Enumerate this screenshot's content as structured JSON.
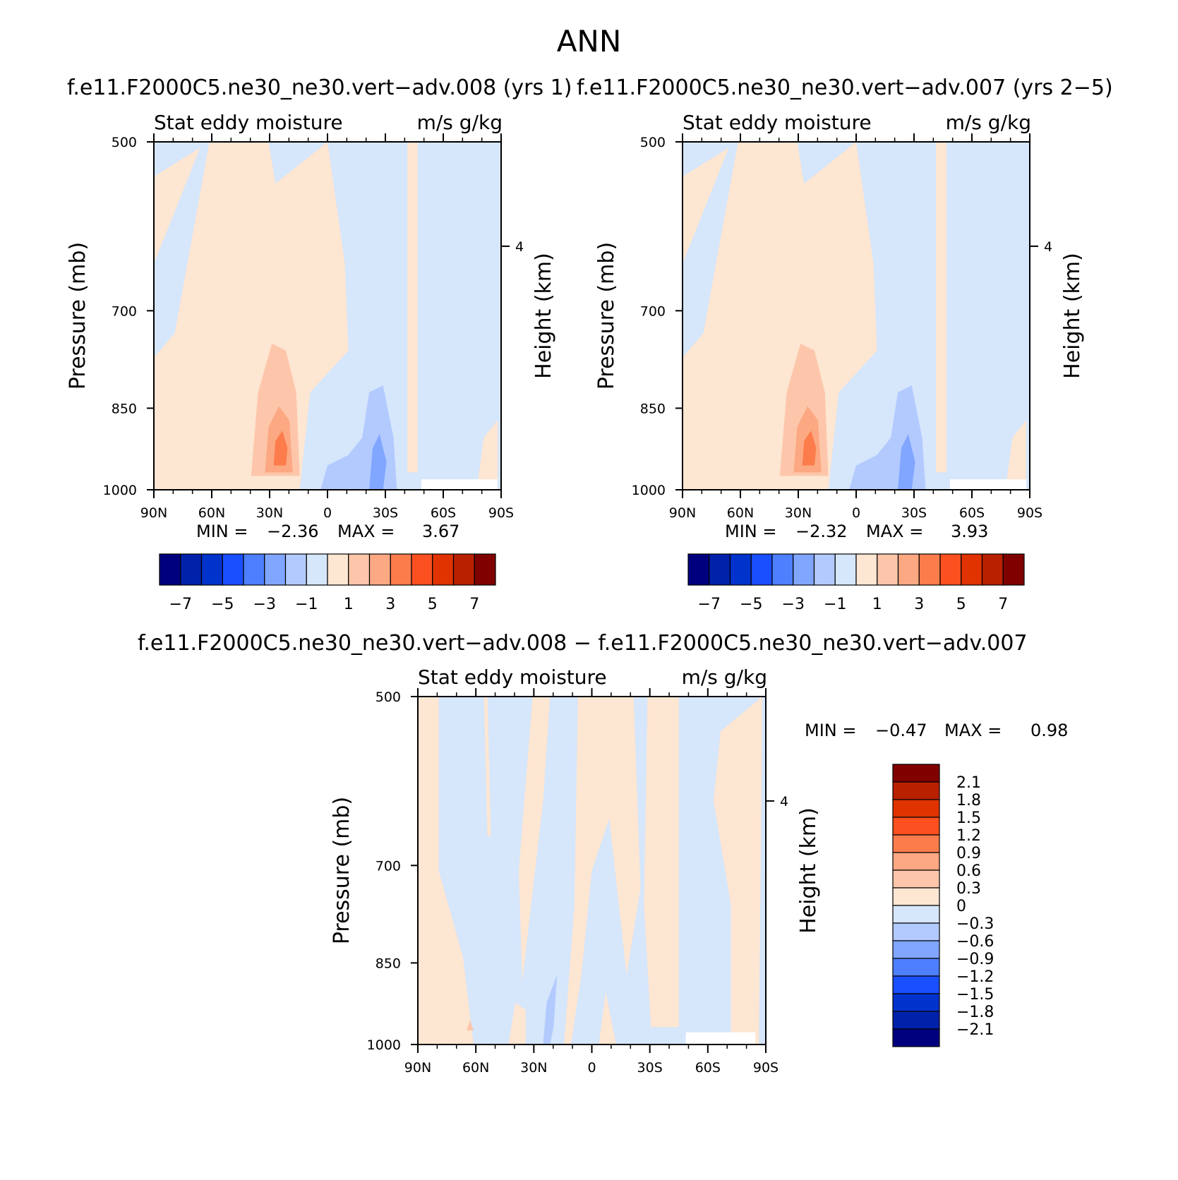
{
  "page": {
    "title": "ANN",
    "palette": [
      "#00007f",
      "#0022aa",
      "#0033cc",
      "#1a4fff",
      "#4d7fff",
      "#80a6ff",
      "#b3caff",
      "#d6e6fb",
      "#fde6d2",
      "#fdc6aa",
      "#fca882",
      "#fc7c4c",
      "#fc5020",
      "#e03300",
      "#b82000",
      "#800000"
    ]
  },
  "chart_data": [
    {
      "type": "heatmap",
      "title": "f.e11.F2000C5.ne30_ne30.vert−adv.008 (yrs 1)",
      "subtitle_left": "Stat eddy moisture",
      "subtitle_right": "m/s g/kg",
      "xlabel": "",
      "ylabel": "Pressure (mb)",
      "y2label": "Height (km)",
      "x_ticks": [
        "90N",
        "60N",
        "30N",
        "0",
        "30S",
        "60S",
        "90S"
      ],
      "y_ticks": [
        "500",
        "700",
        "850",
        "1000"
      ],
      "y2_ticks": [
        "4"
      ],
      "stats": {
        "min_label": "MIN =",
        "min": "−2.36",
        "max_label": "MAX =",
        "max": "3.67"
      },
      "colorbar": {
        "orientation": "horizontal",
        "levels": [
          -7,
          -6,
          -5,
          -4,
          -3,
          -2,
          -1,
          0,
          1,
          2,
          3,
          4,
          5,
          6,
          7
        ],
        "tick_labels": [
          "−7",
          "−5",
          "−3",
          "−1",
          "1",
          "3",
          "5",
          "7"
        ]
      }
    },
    {
      "type": "heatmap",
      "title": "f.e11.F2000C5.ne30_ne30.vert−adv.007 (yrs 2−5)",
      "subtitle_left": "Stat eddy moisture",
      "subtitle_right": "m/s g/kg",
      "xlabel": "",
      "ylabel": "Pressure (mb)",
      "y2label": "Height (km)",
      "x_ticks": [
        "90N",
        "60N",
        "30N",
        "0",
        "30S",
        "60S",
        "90S"
      ],
      "y_ticks": [
        "500",
        "700",
        "850",
        "1000"
      ],
      "y2_ticks": [
        "4"
      ],
      "stats": {
        "min_label": "MIN =",
        "min": "−2.32",
        "max_label": "MAX =",
        "max": "3.93"
      },
      "colorbar": {
        "orientation": "horizontal",
        "levels": [
          -7,
          -6,
          -5,
          -4,
          -3,
          -2,
          -1,
          0,
          1,
          2,
          3,
          4,
          5,
          6,
          7
        ],
        "tick_labels": [
          "−7",
          "−5",
          "−3",
          "−1",
          "1",
          "3",
          "5",
          "7"
        ]
      }
    },
    {
      "type": "heatmap",
      "title": "f.e11.F2000C5.ne30_ne30.vert−adv.008 − f.e11.F2000C5.ne30_ne30.vert−adv.007",
      "subtitle_left": "Stat eddy moisture",
      "subtitle_right": "m/s g/kg",
      "xlabel": "",
      "ylabel": "Pressure (mb)",
      "y2label": "Height (km)",
      "x_ticks": [
        "90N",
        "60N",
        "30N",
        "0",
        "30S",
        "60S",
        "90S"
      ],
      "y_ticks": [
        "500",
        "700",
        "850",
        "1000"
      ],
      "y2_ticks": [
        "4"
      ],
      "stats": {
        "min_label": "MIN =",
        "min": "−0.47",
        "max_label": "MAX =",
        "max": "0.98"
      },
      "colorbar": {
        "orientation": "vertical",
        "levels": [
          -2.1,
          -1.8,
          -1.5,
          -1.2,
          -0.9,
          -0.6,
          -0.3,
          0,
          0.3,
          0.6,
          0.9,
          1.2,
          1.5,
          1.8,
          2.1
        ],
        "tick_labels": [
          "2.1",
          "1.8",
          "1.5",
          "1.2",
          "0.9",
          "0.6",
          "0.3",
          "0",
          "−0.3",
          "−0.6",
          "−0.9",
          "−1.2",
          "−1.5",
          "−1.8",
          "−2.1"
        ]
      }
    }
  ]
}
